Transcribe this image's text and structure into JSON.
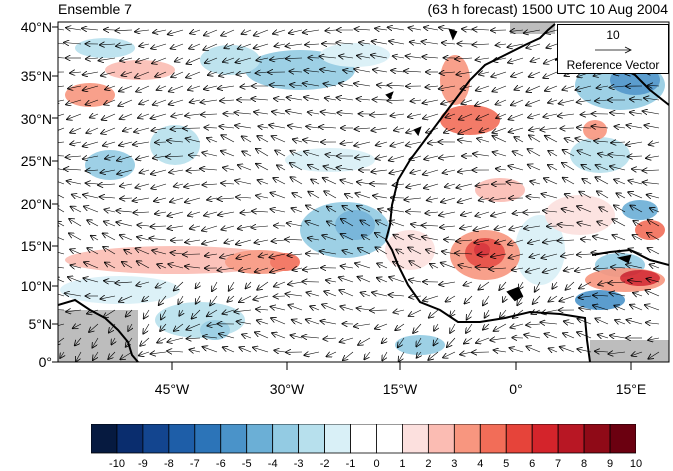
{
  "title": {
    "left": "Ensemble 7",
    "right": "(63 h forecast) 1500 UTC 10 Aug 2004"
  },
  "y_axis": {
    "labels": [
      "40°N",
      "35°N",
      "30°N",
      "25°N",
      "20°N",
      "15°N",
      "10°N",
      "5°N",
      "0°"
    ]
  },
  "x_axis": {
    "labels": [
      "45°W",
      "30°W",
      "15°W",
      "0°",
      "15°E"
    ]
  },
  "reference_vector": {
    "magnitude": "10",
    "label": "Reference Vector"
  },
  "colorbar": {
    "labels": [
      "-10",
      "-9",
      "-8",
      "-7",
      "-6",
      "-5",
      "-4",
      "-3",
      "-2",
      "-1",
      "0",
      "1",
      "2",
      "3",
      "4",
      "5",
      "6",
      "7",
      "8",
      "9",
      "10"
    ],
    "colors": [
      "#061a40",
      "#0a2d6e",
      "#13458f",
      "#1e5ea8",
      "#2c74b8",
      "#4a93c9",
      "#6bafd6",
      "#93cbe3",
      "#b7e0ed",
      "#d9f0f7",
      "#ffffff",
      "#ffffff",
      "#fce0de",
      "#fbbcb3",
      "#f8967f",
      "#f26d58",
      "#e6443a",
      "#d4242b",
      "#b81724",
      "#8f0a17",
      "#6b0010"
    ]
  },
  "colors": {
    "land_outline": "#000000",
    "missing": "#bdbdbd"
  }
}
